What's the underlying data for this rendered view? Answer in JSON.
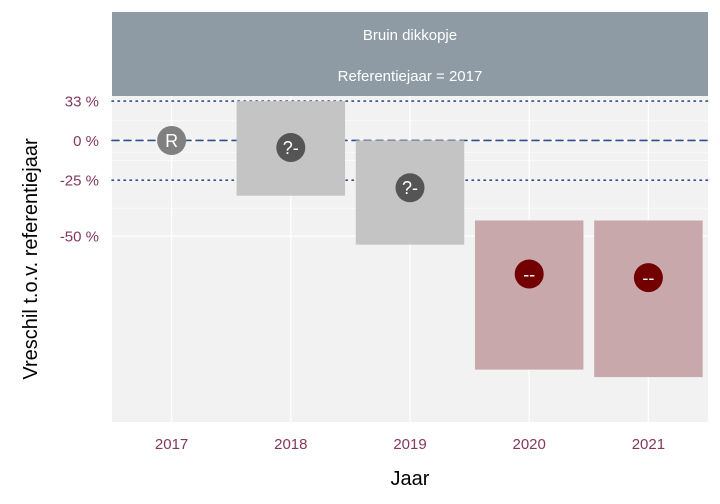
{
  "chart_data": {
    "type": "bar",
    "facet": {
      "title": "Bruin dikkopje",
      "subtitle": "Referentiejaar = 2017"
    },
    "xlabel": "Jaar",
    "ylabel": "Vreschil t.o.v. referentiejaar",
    "categories": [
      "2017",
      "2018",
      "2019",
      "2020",
      "2021"
    ],
    "y_scale": "log",
    "ylim": [
      -87,
      38
    ],
    "yticks": [
      {
        "value": 33,
        "label": "33 %"
      },
      {
        "value": 0,
        "label": "0 %"
      },
      {
        "value": -25,
        "label": "-25 %"
      },
      {
        "value": -50,
        "label": "-50 %"
      }
    ],
    "reference_lines": [
      {
        "value": 33,
        "style": "dotted"
      },
      {
        "value": 0,
        "style": "dashed"
      },
      {
        "value": -25,
        "style": "dotted"
      }
    ],
    "points": [
      {
        "year": "2017",
        "estimate": 0,
        "lower": null,
        "upper": null,
        "label": "R",
        "color": "#808080"
      },
      {
        "year": "2018",
        "estimate": -5,
        "lower": -33,
        "upper": 33,
        "label": "?-",
        "color": "#555555"
      },
      {
        "year": "2019",
        "estimate": -29,
        "lower": -53,
        "upper": 0,
        "label": "?-",
        "color": "#555555"
      },
      {
        "year": "2020",
        "estimate": -62,
        "lower": -81,
        "upper": -44,
        "label": "--",
        "color": "#730000"
      },
      {
        "year": "2021",
        "estimate": -63,
        "lower": -82,
        "upper": -44,
        "label": "--",
        "color": "#730000"
      }
    ],
    "interval_colors": {
      "uncertain": "#c4c4c4",
      "decrease": "#c9a8ab"
    },
    "colors": {
      "strip": "#8e9ba5",
      "panel": "#f2f2f2",
      "grid": "#ffffff",
      "ref_line": "#2e4f8a",
      "tick_label": "#843860"
    },
    "grid": true,
    "legend": "none"
  }
}
